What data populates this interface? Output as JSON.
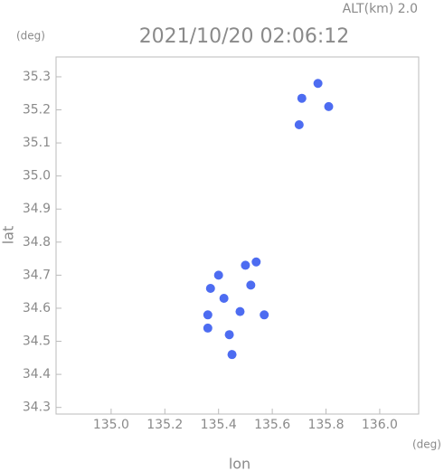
{
  "chart_data": {
    "type": "scatter",
    "title": "2021/10/20 02:06:12",
    "altitude_label": "ALT(km) 2.0",
    "y_unit": "(deg)",
    "x_unit": "(deg)",
    "xlabel": "lon",
    "ylabel": "lat",
    "xlim": [
      134.795,
      136.145
    ],
    "ylim": [
      34.28,
      35.36
    ],
    "xticks": [
      {
        "value": 135.0,
        "label": "135.0"
      },
      135.2,
      135.4,
      135.6,
      135.8,
      {
        "value": 136.0,
        "label": "136.0"
      }
    ],
    "yticks": [
      34.3,
      34.4,
      34.5,
      34.6,
      34.7,
      34.8,
      34.9,
      {
        "value": 35.0,
        "label": "35.0"
      },
      35.1,
      35.2,
      35.3
    ],
    "color": "#3a5cf0",
    "x": [
      135.77,
      135.71,
      135.81,
      135.7,
      135.42,
      135.37,
      135.36,
      135.4,
      135.5,
      135.52,
      135.54,
      135.48,
      135.44,
      135.36,
      135.45,
      135.57
    ],
    "y": [
      35.28,
      35.235,
      35.21,
      35.155,
      34.63,
      34.66,
      34.58,
      34.7,
      34.73,
      34.67,
      34.74,
      34.59,
      34.52,
      34.54,
      34.46,
      34.58
    ]
  }
}
